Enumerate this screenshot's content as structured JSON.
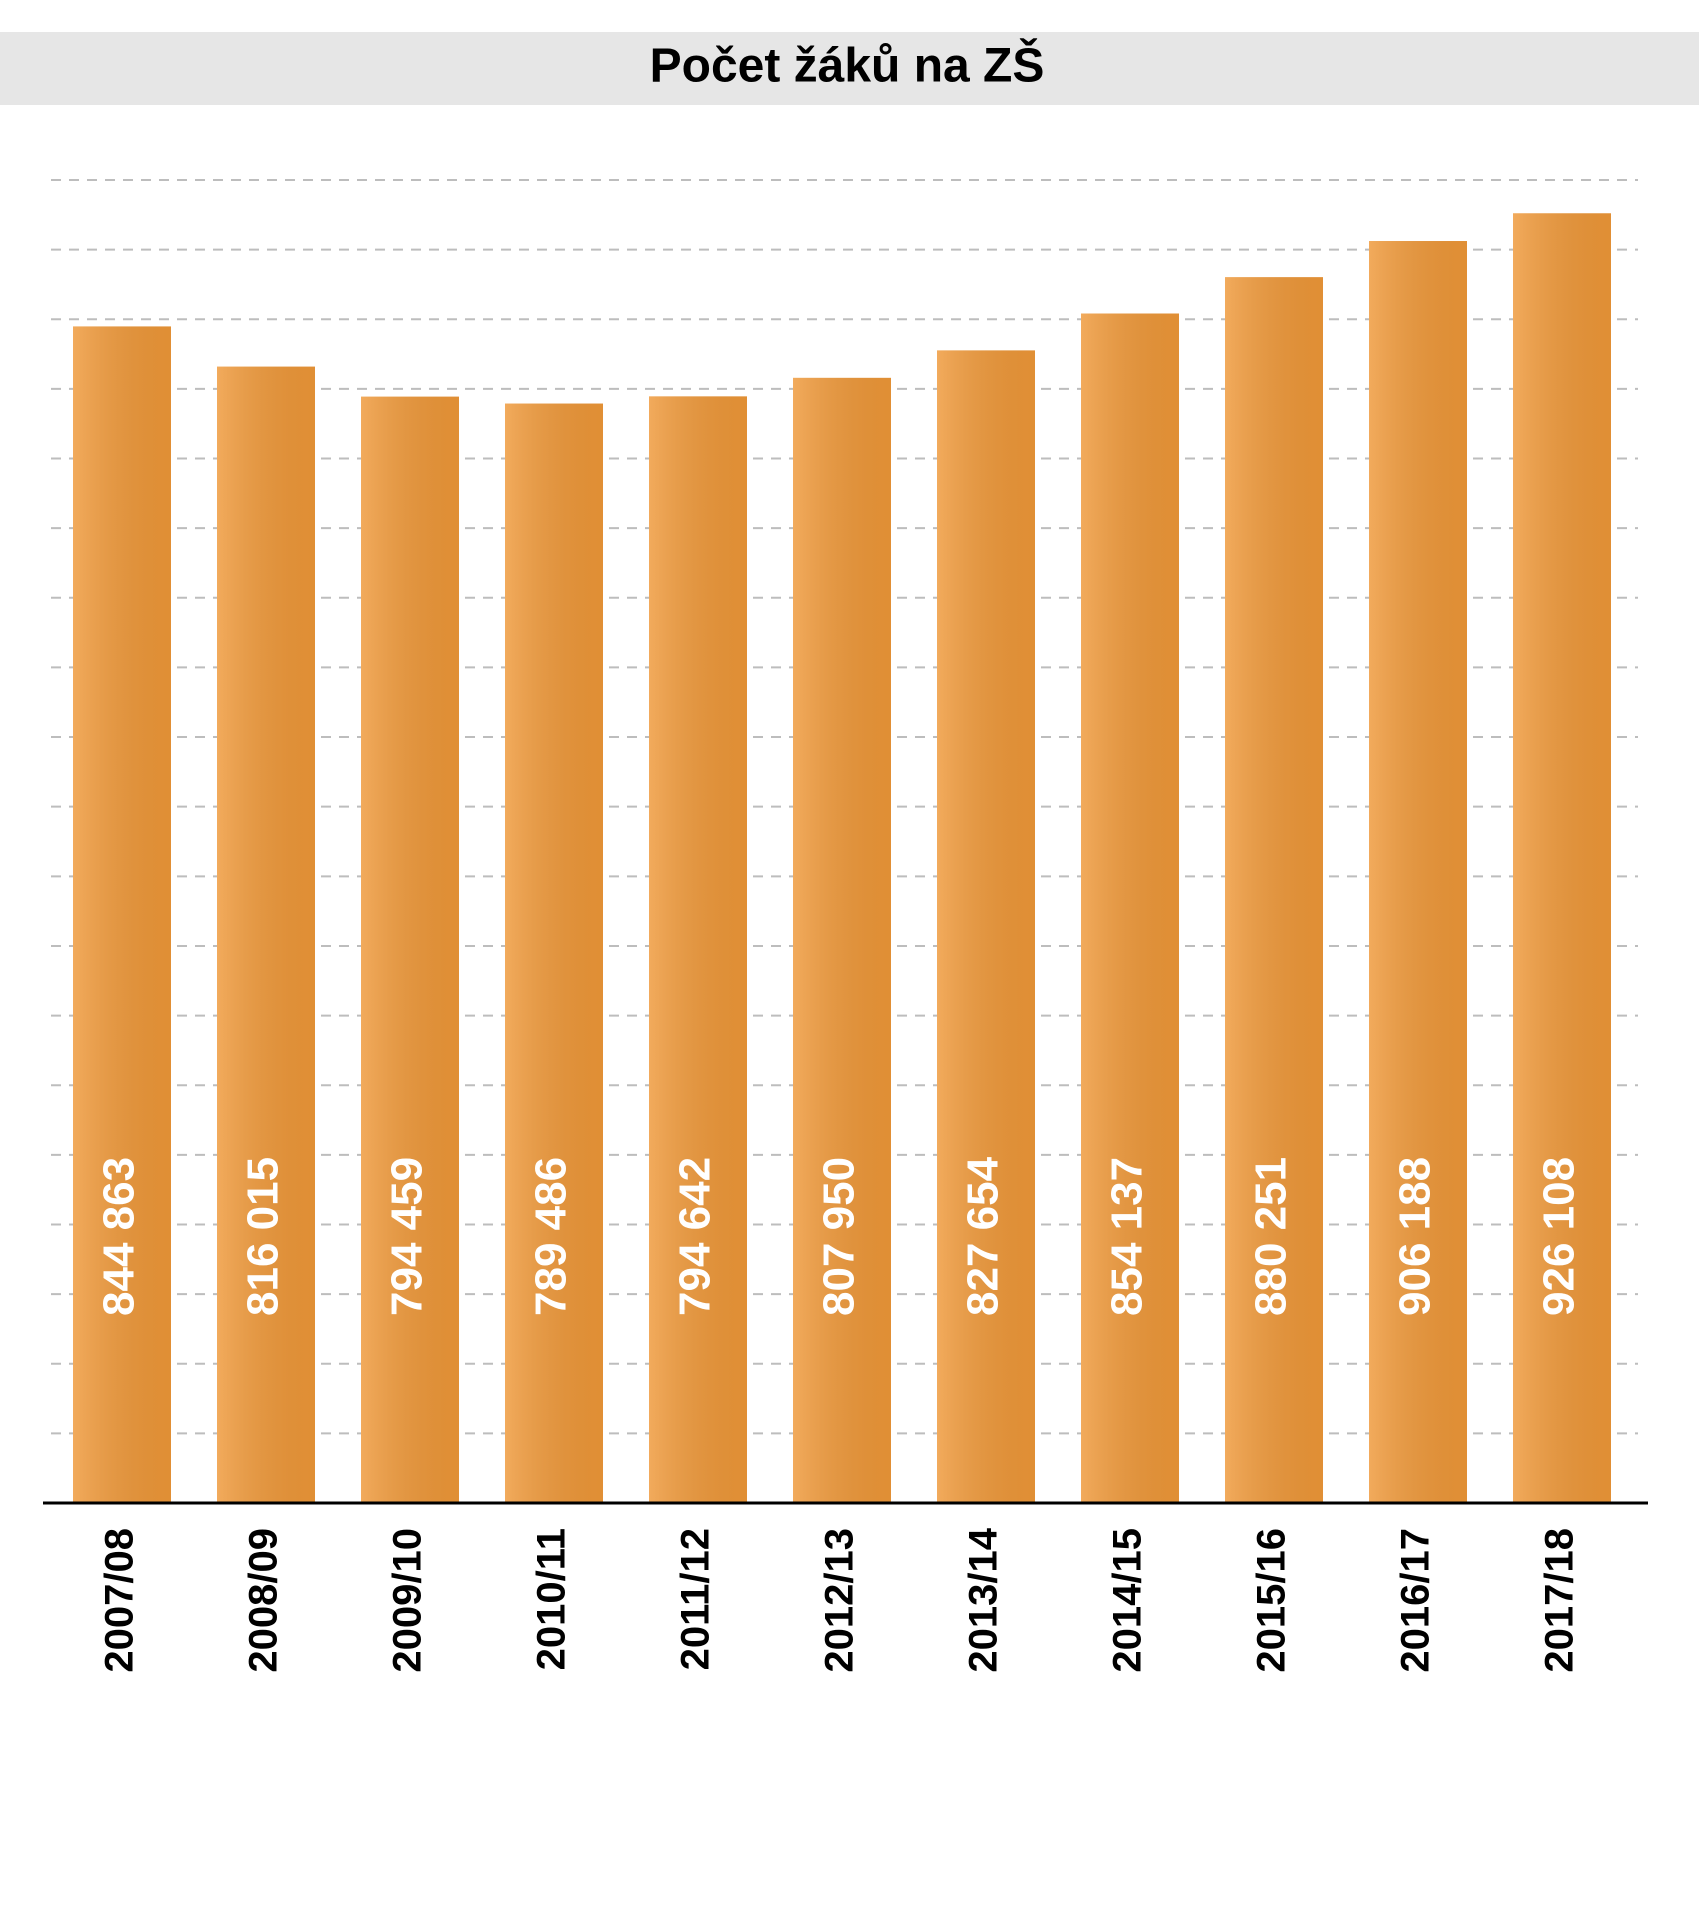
{
  "chart_data": {
    "type": "bar",
    "title": "Počet žáků na ZŠ",
    "categories": [
      "2007/08",
      "2008/09",
      "2009/10",
      "2010/11",
      "2011/12",
      "2012/13",
      "2013/14",
      "2014/15",
      "2015/16",
      "2016/17",
      "2017/18"
    ],
    "values": [
      844863,
      816015,
      794459,
      789486,
      794642,
      807950,
      827654,
      854137,
      880251,
      906188,
      926108
    ],
    "value_labels": [
      "844 863",
      "816 015",
      "794 459",
      "789 486",
      "794 642",
      "807 950",
      "827 654",
      "854 137",
      "880 251",
      "906 188",
      "926 108"
    ],
    "color": "#ef9838",
    "ylim": [
      0,
      950000
    ],
    "yticks": [
      0,
      50000,
      100000,
      150000,
      200000,
      250000,
      300000,
      350000,
      400000,
      450000,
      500000,
      550000,
      600000,
      650000,
      700000,
      750000,
      800000,
      850000,
      900000,
      950000
    ],
    "grid": true
  }
}
